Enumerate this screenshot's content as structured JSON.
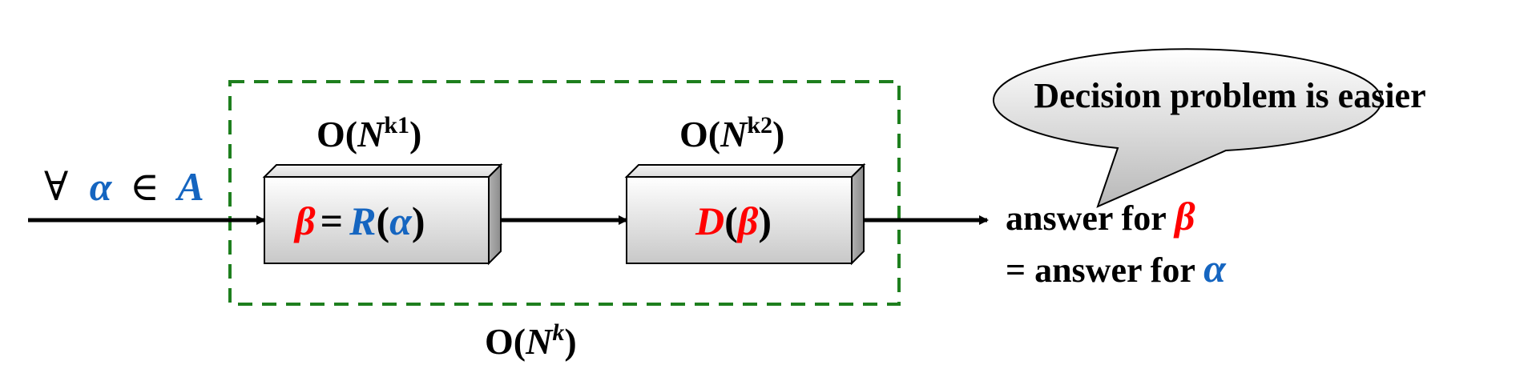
{
  "colors": {
    "red": "#ff0000",
    "blue": "#1565c0",
    "black": "#000000",
    "dashed_box": "#1e7f1e",
    "box_fill_light": "#ffffff",
    "box_fill_dark": "#c8c8c8",
    "bubble_fill_light": "#ffffff",
    "bubble_fill_dark": "#b8b8b8"
  },
  "input": {
    "forall": "∀",
    "alpha": "α",
    "element_of": "∈",
    "set": "A"
  },
  "reduction_box": {
    "complexity_prefix": "O(",
    "complexity_var": "N",
    "complexity_exp": "k1",
    "complexity_suffix": ")",
    "beta": "β",
    "equals": "=",
    "func": "R",
    "open_paren": "(",
    "alpha": "α",
    "close_paren": ")"
  },
  "decision_box": {
    "complexity_prefix": "O(",
    "complexity_var": "N",
    "complexity_exp": "k2",
    "complexity_suffix": ")",
    "func": "D",
    "open_paren": "(",
    "beta": "β",
    "close_paren": ")"
  },
  "total_complexity": {
    "prefix": "O(",
    "var": "N",
    "exp": "k",
    "suffix": ")"
  },
  "output": {
    "line1_text": "answer for ",
    "line1_symbol": "β",
    "line2_text": "= answer for ",
    "line2_symbol": "α"
  },
  "callout": {
    "text": "Decision problem is easier"
  },
  "icons": [
    "forall-symbol",
    "element-of-symbol",
    "arrow-right-icon"
  ]
}
